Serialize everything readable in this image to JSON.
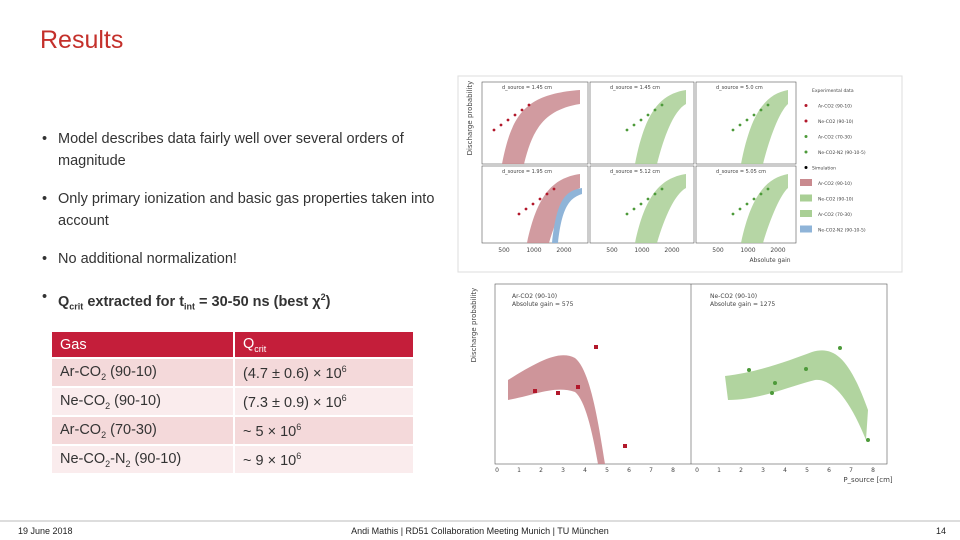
{
  "header": {
    "title": "Results"
  },
  "bullets": [
    [
      {
        "text": "Model describes data fairly well over several orders of magnitude"
      }
    ],
    [
      {
        "text": "Only primary ionization and basic gas properties taken into account"
      }
    ],
    [
      {
        "text": "No additional normalization!"
      }
    ],
    [
      {
        "text": "Q",
        "weight": "bold"
      },
      {
        "text": "crit",
        "pos": "sub",
        "weight": "bold"
      },
      {
        "text": " extracted for t",
        "weight": "bold"
      },
      {
        "text": "int",
        "pos": "sub",
        "weight": "bold"
      },
      {
        "text": " = 30-50 ns (best χ",
        "weight": "bold"
      },
      {
        "text": "2",
        "pos": "sup",
        "weight": "bold"
      },
      {
        "text": ")",
        "weight": "bold"
      }
    ]
  ],
  "table": {
    "header": [
      [
        {
          "text": "Gas"
        }
      ],
      [
        {
          "text": "Q"
        },
        {
          "text": "crit",
          "pos": "sub"
        }
      ]
    ],
    "rows": [
      [
        [
          {
            "text": "Ar-CO"
          },
          {
            "text": "2",
            "pos": "sub"
          },
          {
            "text": " (90-10)"
          }
        ],
        [
          {
            "text": "(4.7 ± 0.6) × 10"
          },
          {
            "text": "6",
            "pos": "sup"
          }
        ]
      ],
      [
        [
          {
            "text": "Ne-CO"
          },
          {
            "text": "2",
            "pos": "sub"
          },
          {
            "text": " (90-10)"
          }
        ],
        [
          {
            "text": "(7.3 ± 0.9) × 10"
          },
          {
            "text": "6",
            "pos": "sup"
          }
        ]
      ],
      [
        [
          {
            "text": "Ar-CO"
          },
          {
            "text": "2",
            "pos": "sub"
          },
          {
            "text": " (70-30)"
          }
        ],
        [
          {
            "text": "~ 5 × 10"
          },
          {
            "text": "6",
            "pos": "sup"
          }
        ]
      ],
      [
        [
          {
            "text": "Ne-CO"
          },
          {
            "text": "2",
            "pos": "sub"
          },
          {
            "text": "-N"
          },
          {
            "text": "2",
            "pos": "sub"
          },
          {
            "text": " (90-10)"
          }
        ],
        [
          {
            "text": "~ 9 × 10"
          },
          {
            "text": "6",
            "pos": "sup"
          }
        ]
      ]
    ]
  },
  "figure_top": {
    "y_label": "Discharge probability",
    "x_label": "Absolute gain",
    "panels": [
      "d_source = 1.45 cm",
      "d_source = 1.45 cm",
      "d_source = 5.0 cm",
      "d_source = 1.95 cm",
      "d_source = 5.12 cm",
      "d_source = 5.05 cm"
    ],
    "x_ticks": [
      "500",
      "1000",
      "2000",
      "500",
      "1000",
      "2000",
      "500",
      "1000",
      "2000"
    ],
    "legend": [
      "Experimental data",
      "Ar-CO2 (90-10)",
      "Ne-CO2 (90-10)",
      "Ar-CO2 (70-30)",
      "Ne-CO2-N2 (90-10-5)",
      "Simulation",
      "Ar-CO2 (90-10)",
      "Ne-CO2 (90-10)",
      "Ar-CO2 (70-30)",
      "Ne-CO2-N2 (90-10-5)"
    ]
  },
  "figure_bottom": {
    "y_label": "Discharge probability",
    "x_label": "P_source [cm]",
    "panels": [
      [
        "Ar-CO2 (90-10)",
        "Absolute gain = 575"
      ],
      [
        "Ne-CO2 (90-10)",
        "Absolute gain = 1275"
      ]
    ],
    "x_ticks": [
      "0",
      "1",
      "2",
      "3",
      "4",
      "5",
      "6",
      "7",
      "8"
    ]
  },
  "footer": {
    "date": "19 June 2018",
    "center": "Andi Mathis | RD51 Collaboration Meeting Munich | TU München",
    "page": "14"
  }
}
